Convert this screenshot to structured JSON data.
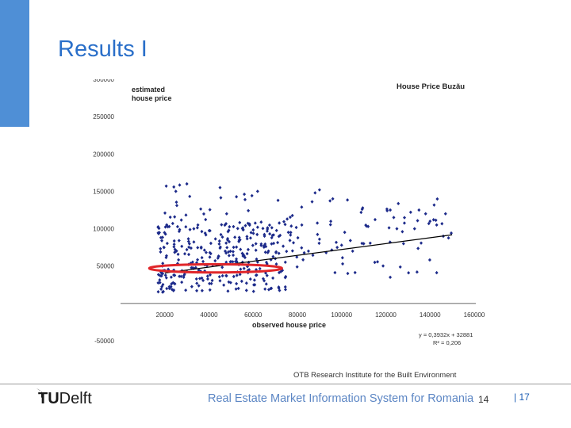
{
  "slide": {
    "title": "Results I",
    "footer_org": "OTB Research Institute for the Built Environment",
    "footer_title": "Real Estate Market Information System for Romania",
    "footer_number": "14",
    "page_label": "| 17",
    "logo_tu": "TU",
    "logo_delft": "Delft"
  },
  "colors": {
    "accent_blue": "#4f8fd6",
    "title_blue": "#2a6fc9",
    "points": "#1c2a8a",
    "highlight_ellipse": "#e0262a",
    "trend_line": "#000000"
  },
  "chart_data": {
    "type": "scatter",
    "title": "House Price Buzău",
    "ylabel": "estimated house price",
    "xlabel": "observed house price",
    "xlim": [
      0,
      160000
    ],
    "ylim": [
      -50000,
      300000
    ],
    "x_ticks": [
      "20000",
      "40000",
      "60000",
      "80000",
      "100000",
      "120000",
      "140000",
      "160000"
    ],
    "y_ticks": [
      "300000",
      "250000",
      "200000",
      "150000",
      "100000",
      "50000",
      "-50000"
    ],
    "trendline": {
      "slope": 0.3932,
      "intercept": 32881,
      "x_range": [
        20000,
        150000
      ]
    },
    "equation": "y = 0,3932x + 32881",
    "r_squared": "R² = 0,206",
    "highlight": {
      "label": "red ellipse",
      "x_center": 43000,
      "y_center": 47000,
      "x_radius": 30000,
      "y_radius": 5500
    },
    "point_groups": [
      {
        "x_range": [
          17000,
          75000
        ],
        "y_range": [
          15000,
          110000
        ],
        "count": 320
      },
      {
        "x_range": [
          75000,
          150000
        ],
        "y_range": [
          40000,
          140000
        ],
        "count": 70
      },
      {
        "x_range": [
          20000,
          80000
        ],
        "y_range": [
          110000,
          160000
        ],
        "count": 24
      }
    ],
    "points": [
      [
        30000,
        160000
      ],
      [
        25000,
        150000
      ],
      [
        45000,
        155000
      ],
      [
        62000,
        150000
      ],
      [
        88000,
        148000
      ],
      [
        90000,
        152000
      ],
      [
        96000,
        140000
      ],
      [
        122000,
        125000
      ],
      [
        135000,
        125000
      ],
      [
        147000,
        120000
      ],
      [
        140000,
        110000
      ],
      [
        115000,
        55000
      ],
      [
        122000,
        35000
      ],
      [
        105000,
        70000
      ],
      [
        98000,
        75000
      ],
      [
        85000,
        70000
      ],
      [
        90000,
        86000
      ],
      [
        77000,
        95000
      ],
      [
        82000,
        105000
      ],
      [
        112000,
        103000
      ],
      [
        128000,
        80000
      ],
      [
        143000,
        105000
      ],
      [
        138000,
        120000
      ],
      [
        146000,
        90000
      ],
      [
        133000,
        100000
      ],
      [
        125000,
        100000
      ],
      [
        110000,
        80000
      ],
      [
        100000,
        78000
      ],
      [
        93000,
        68000
      ],
      [
        70000,
        60000
      ],
      [
        66000,
        55000
      ],
      [
        52000,
        56000
      ],
      [
        48000,
        120000
      ],
      [
        35000,
        105000
      ]
    ]
  }
}
